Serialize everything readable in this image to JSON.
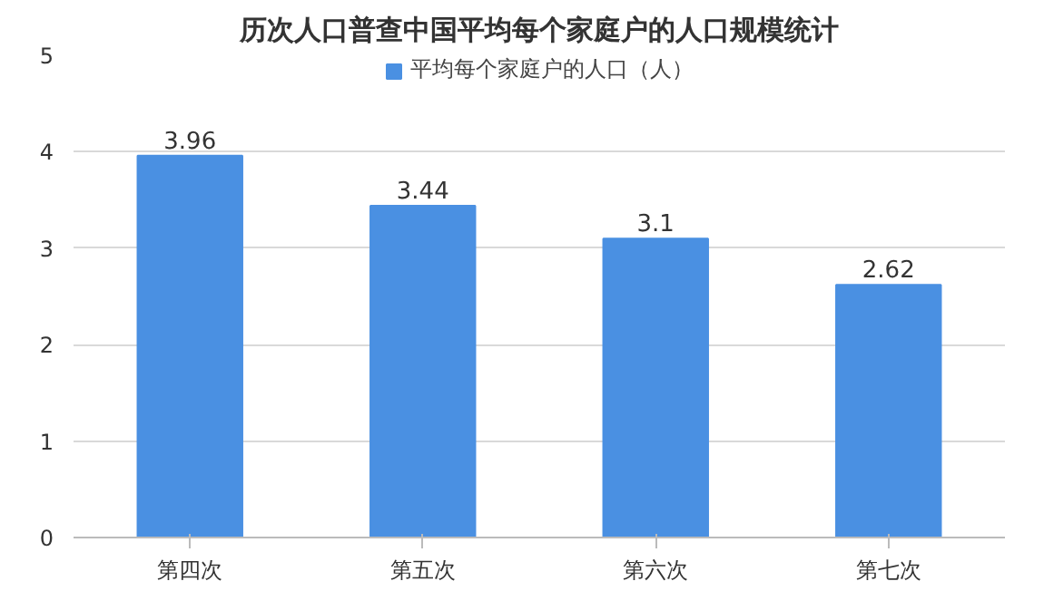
{
  "chart_data": {
    "type": "bar",
    "title": "历次人口普查中国平均每个家庭户的人口规模统计",
    "categories": [
      "第四次",
      "第五次",
      "第六次",
      "第七次"
    ],
    "series": [
      {
        "name": "平均每个家庭户的人口（人）",
        "color": "#4a90e2",
        "values": [
          3.96,
          3.44,
          3.1,
          2.62
        ]
      }
    ],
    "ylim": [
      0,
      5
    ],
    "yticks": [
      0,
      1,
      2,
      3,
      4,
      5
    ],
    "grid": "y",
    "legend": "top",
    "data_labels": true
  }
}
